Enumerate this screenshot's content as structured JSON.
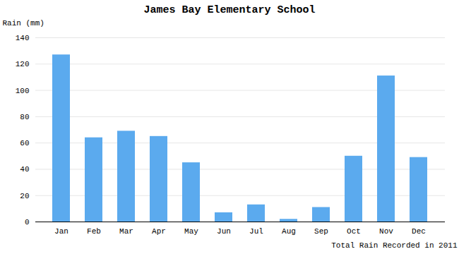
{
  "chart_data": {
    "type": "bar",
    "title": "James Bay Elementary School",
    "xlabel": "Total Rain Recorded in 2011",
    "ylabel": "Rain (mm)",
    "categories": [
      "Jan",
      "Feb",
      "Mar",
      "Apr",
      "May",
      "Jun",
      "Jul",
      "Aug",
      "Sep",
      "Oct",
      "Nov",
      "Dec"
    ],
    "values": [
      127,
      64,
      69,
      65,
      45,
      7,
      13,
      2,
      11,
      50,
      111,
      49
    ],
    "color": "#5BAAEE",
    "ylim": [
      0,
      140
    ],
    "yticks": [
      0,
      20,
      40,
      60,
      80,
      100,
      120,
      140
    ],
    "grid": true
  }
}
